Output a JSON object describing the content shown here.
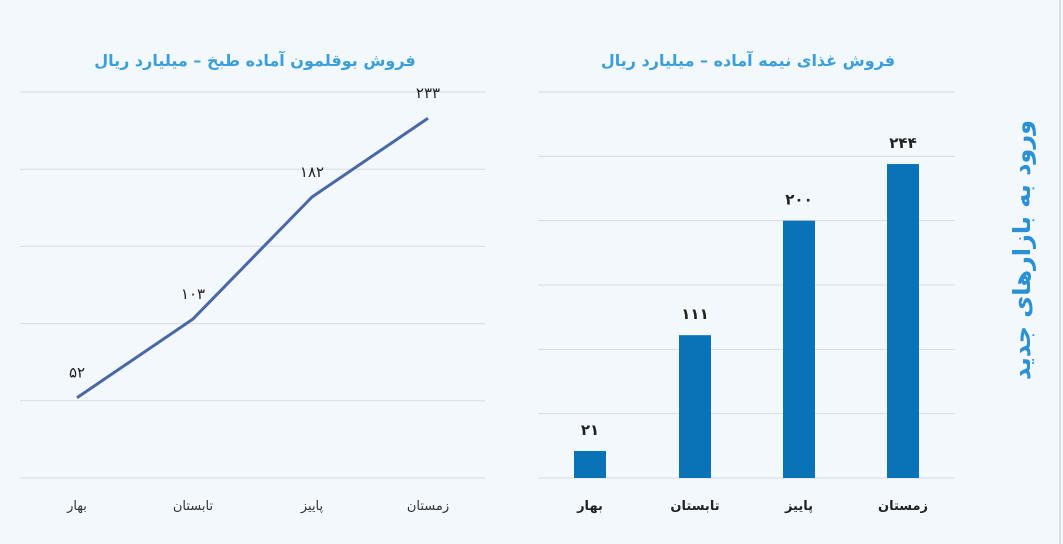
{
  "side_title": "ورود به بازارهای جدید",
  "colors": {
    "line": "#4a68a8",
    "bar": "#0a73b8",
    "title": "#3a9fdc",
    "grid": "#d6dce2"
  },
  "chart_data": [
    {
      "type": "line",
      "title": "فروش بوقلمون آماده طبخ – میلیارد ریال",
      "categories": [
        "بهار",
        "تابستان",
        "پاییز",
        "زمستان"
      ],
      "values": [
        52,
        103,
        182,
        233
      ],
      "data_labels": [
        "۵۲",
        "۱۰۳",
        "۱۸۲",
        "۲۳۳"
      ],
      "ylim": [
        0,
        250
      ],
      "grid": true,
      "xlabel": "",
      "ylabel": ""
    },
    {
      "type": "bar",
      "title": "فروش غذای نیمه آماده – میلیارد ریال",
      "categories": [
        "بهار",
        "تابستان",
        "پاییز",
        "زمستان"
      ],
      "values": [
        21,
        111,
        200,
        244
      ],
      "data_labels": [
        "۲۱",
        "۱۱۱",
        "۲۰۰",
        "۲۴۴"
      ],
      "ylim": [
        0,
        300
      ],
      "grid": true,
      "xlabel": "",
      "ylabel": ""
    }
  ]
}
